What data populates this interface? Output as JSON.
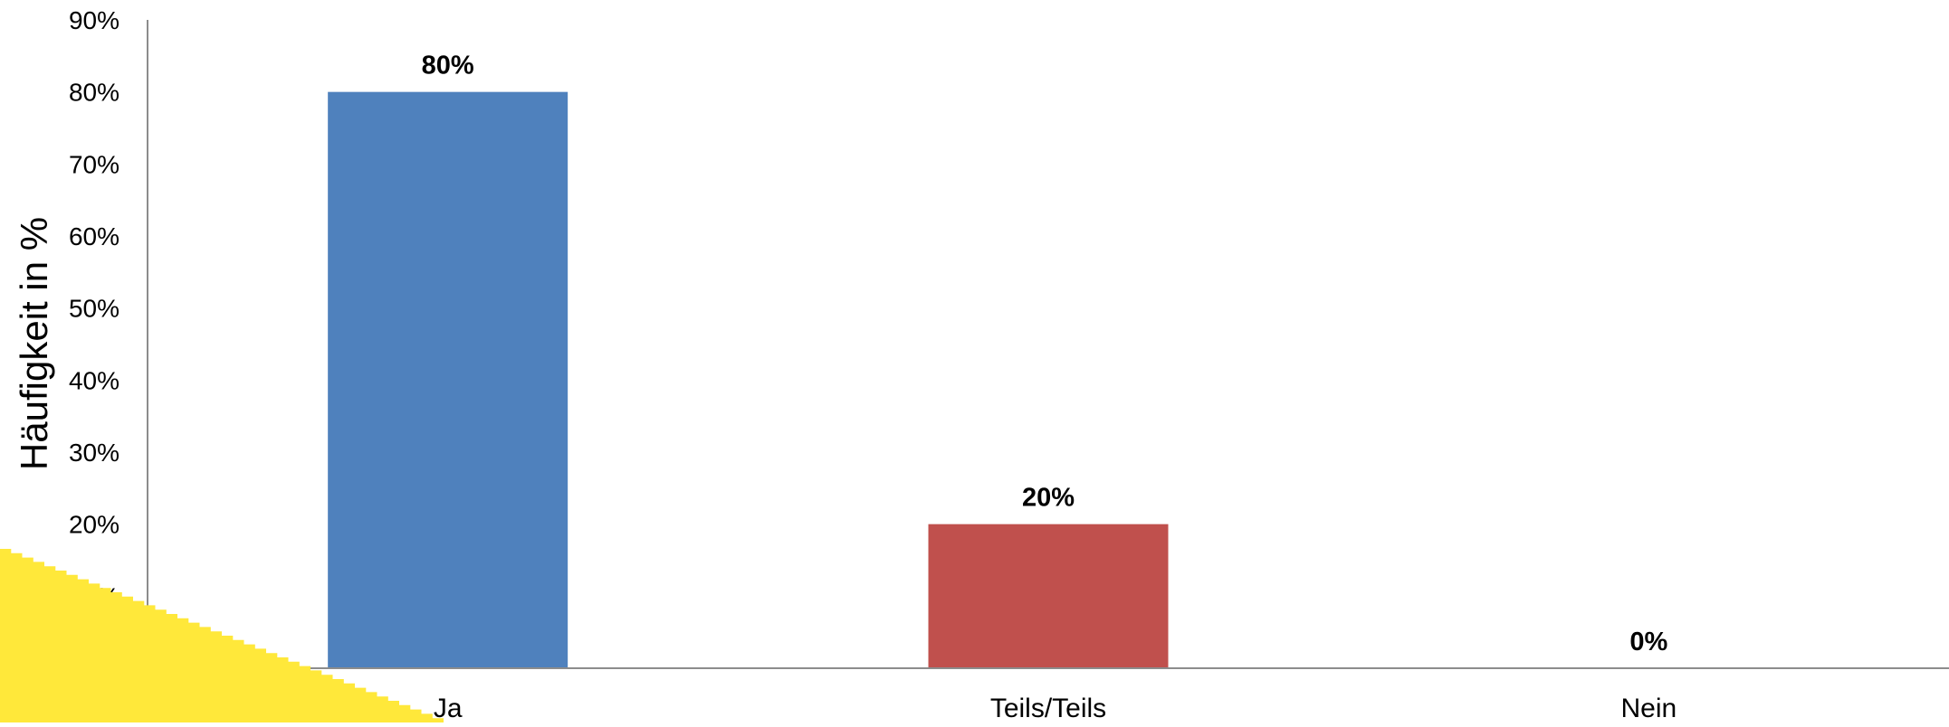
{
  "chart_data": {
    "type": "bar",
    "title": "",
    "xlabel": "",
    "ylabel": "Häufigkeit in %",
    "ylim": [
      0,
      90
    ],
    "ytick_step": 10,
    "ytick_suffix": "%",
    "grid": false,
    "legend": "none",
    "categories": [
      "Ja",
      "Teils/Teils",
      "Nein"
    ],
    "values": [
      80,
      20,
      0
    ],
    "data_labels": [
      "80%",
      "20%",
      "0%"
    ],
    "bar_colors": [
      "#4f81bd",
      "#c0504d",
      "#9bbb59"
    ],
    "axis_color": "#8c8c8c"
  },
  "decoration": {
    "corner_shape": "yellow-staircase",
    "corner_color": "#ffe83a"
  }
}
